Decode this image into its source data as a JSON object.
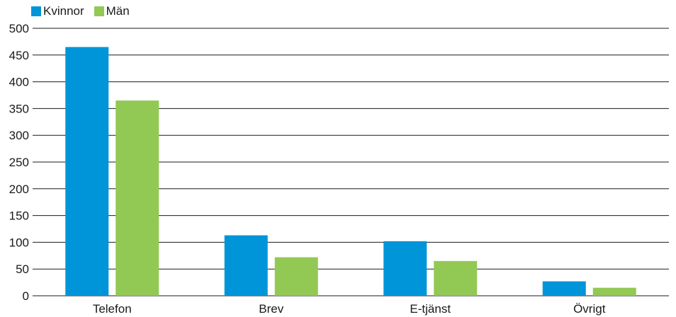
{
  "chart_data": {
    "type": "bar",
    "title": "",
    "xlabel": "",
    "ylabel": "",
    "categories": [
      "Telefon",
      "Brev",
      "E-tjänst",
      "Övrigt"
    ],
    "series": [
      {
        "name": "Kvinnor",
        "color": "#0095d9",
        "values": [
          465,
          113,
          102,
          27
        ]
      },
      {
        "name": "Män",
        "color": "#92c954",
        "values": [
          365,
          72,
          65,
          15
        ]
      }
    ],
    "ylim": [
      0,
      500
    ],
    "yticks": [
      0,
      50,
      100,
      150,
      200,
      250,
      300,
      350,
      400,
      450,
      500
    ],
    "grid": true,
    "legend_position": "top-left"
  }
}
